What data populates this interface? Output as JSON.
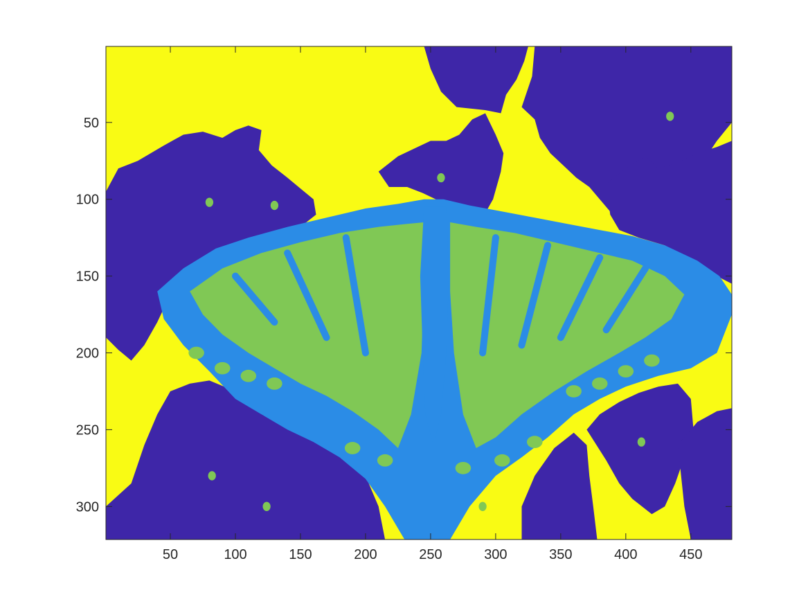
{
  "chart_data": {
    "type": "heatmap",
    "title": "",
    "xlabel": "",
    "ylabel": "",
    "xlim": [
      0.5,
      481.5
    ],
    "ylim": [
      0.5,
      321.5
    ],
    "y_reversed": true,
    "xticks": [
      50,
      100,
      150,
      200,
      250,
      300,
      350,
      400,
      450
    ],
    "yticks": [
      50,
      100,
      150,
      200,
      250,
      300
    ],
    "grid": false,
    "legend": "none",
    "colormap": [
      "#3e26a8",
      "#2b8ce6",
      "#80c855",
      "#f9fb14"
    ],
    "class_colors": {
      "1": "#3e26a8",
      "2": "#2b8ce6",
      "3": "#80c855",
      "4": "#f9fb14"
    },
    "image_size": {
      "columns": 481,
      "rows": 321
    },
    "regions_description": "4-cluster segmentation of a butterfly image: yellow background upper left/lower left and right, purple flower regions at left, top center, right and bottom, butterfly wings in blue with green interior bands centered around x≈250, y≈110–300"
  }
}
